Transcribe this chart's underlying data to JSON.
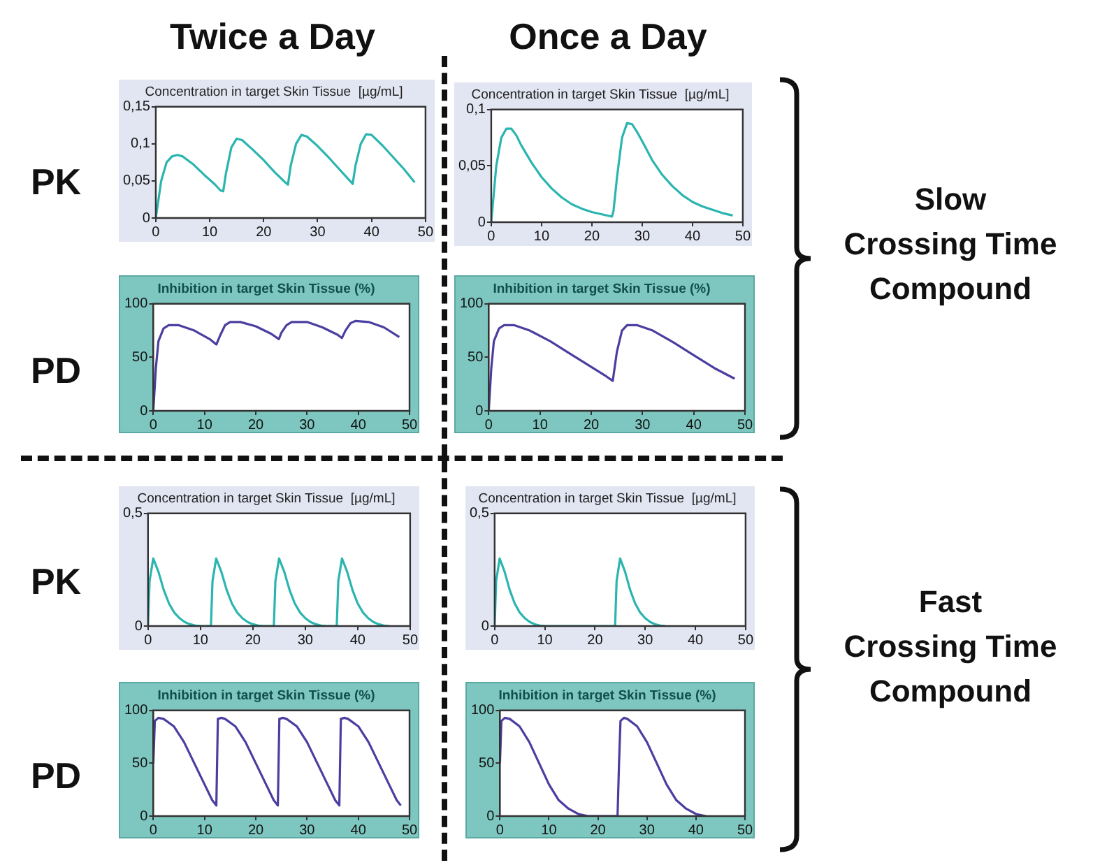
{
  "chart_data": [
    {
      "type": "other",
      "annotations": [
        "Twice a Day",
        "Once a Day",
        "PK",
        "PD",
        "PK",
        "PD",
        "Slow\nCrossing Time\nCompound",
        "Fast\nCrossing Time\nCompound"
      ]
    },
    {
      "type": "line",
      "title": "Concentration in target Skin Tissue  [µg/mL]",
      "color": "#2bb5b0",
      "marker": "none",
      "x": [
        0,
        1,
        2,
        3,
        4,
        5,
        7,
        9,
        11,
        12,
        12.5,
        13,
        14,
        15,
        16,
        18,
        20,
        22,
        24,
        24.5,
        25,
        26,
        27,
        28,
        30,
        32,
        34,
        36,
        36.5,
        37,
        38,
        39,
        40,
        42,
        44,
        46,
        48
      ],
      "values": [
        0,
        0.05,
        0.075,
        0.083,
        0.085,
        0.083,
        0.072,
        0.058,
        0.045,
        0.037,
        0.036,
        0.06,
        0.095,
        0.107,
        0.105,
        0.092,
        0.078,
        0.062,
        0.048,
        0.045,
        0.07,
        0.1,
        0.112,
        0.11,
        0.097,
        0.082,
        0.066,
        0.05,
        0.046,
        0.07,
        0.1,
        0.113,
        0.112,
        0.098,
        0.082,
        0.066,
        0.048
      ],
      "xlim": [
        0,
        50
      ],
      "xticks": [
        0,
        10,
        20,
        30,
        40,
        50
      ],
      "ylim": [
        0,
        0.15
      ],
      "yticks": [
        0,
        {
          "value": 0.05,
          "label": "0,05"
        },
        {
          "value": 0.1,
          "label": "0,1"
        },
        {
          "value": 0.15,
          "label": "0,15"
        }
      ]
    },
    {
      "type": "line",
      "title": "Concentration in target Skin Tissue  [µg/mL]",
      "color": "#2bb5b0",
      "marker": "none",
      "x": [
        0,
        1,
        2,
        3,
        4,
        5,
        6,
        8,
        10,
        12,
        14,
        16,
        18,
        20,
        22,
        24,
        24.3,
        25,
        26,
        27,
        28,
        29,
        30,
        32,
        34,
        36,
        38,
        40,
        42,
        44,
        46,
        48
      ],
      "values": [
        0,
        0.05,
        0.075,
        0.083,
        0.083,
        0.077,
        0.068,
        0.053,
        0.04,
        0.03,
        0.022,
        0.016,
        0.012,
        0.009,
        0.007,
        0.005,
        0.01,
        0.04,
        0.075,
        0.088,
        0.087,
        0.08,
        0.072,
        0.055,
        0.042,
        0.032,
        0.024,
        0.018,
        0.014,
        0.011,
        0.008,
        0.006
      ],
      "xlim": [
        0,
        50
      ],
      "xticks": [
        0,
        10,
        20,
        30,
        40,
        50
      ],
      "ylim": [
        0,
        0.1
      ],
      "yticks": [
        0,
        {
          "value": 0.05,
          "label": "0,05"
        },
        {
          "value": 0.1,
          "label": "0,1"
        }
      ]
    },
    {
      "type": "line",
      "title": "Inhibition in target Skin Tissue (%)",
      "color": "#4a3fa0",
      "marker": "none",
      "x": [
        0,
        0.5,
        1,
        2,
        3,
        5,
        8,
        11,
        12.3,
        13,
        14,
        15,
        17,
        20,
        23,
        24.5,
        25,
        26,
        27,
        30,
        33,
        36,
        36.8,
        37.5,
        38.5,
        39.5,
        42,
        45,
        48
      ],
      "values": [
        0,
        40,
        65,
        77,
        80,
        80,
        75,
        67,
        62,
        70,
        80,
        83,
        83,
        79,
        72,
        67,
        73,
        80,
        83,
        83,
        78,
        71,
        68,
        75,
        82,
        84,
        83,
        78,
        69
      ],
      "xlim": [
        0,
        50
      ],
      "xticks": [
        0,
        10,
        20,
        30,
        40,
        50
      ],
      "ylim": [
        0,
        100
      ],
      "yticks": [
        0,
        50,
        100
      ]
    },
    {
      "type": "line",
      "title": "Inhibition in target Skin Tissue (%)",
      "color": "#4a3fa0",
      "marker": "none",
      "x": [
        0,
        0.5,
        1,
        2,
        3,
        5,
        8,
        12,
        16,
        20,
        23,
        24.2,
        25,
        26,
        27,
        29,
        32,
        36,
        40,
        44,
        48
      ],
      "values": [
        0,
        40,
        65,
        77,
        80,
        80,
        75,
        65,
        53,
        41,
        32,
        28,
        55,
        75,
        80,
        80,
        75,
        64,
        52,
        40,
        30
      ],
      "xlim": [
        0,
        50
      ],
      "xticks": [
        0,
        10,
        20,
        30,
        40,
        50
      ],
      "ylim": [
        0,
        100
      ],
      "yticks": [
        0,
        50,
        100
      ]
    },
    {
      "type": "line",
      "title": "Concentration in target Skin Tissue  [µg/mL]",
      "color": "#2bb5b0",
      "marker": "none",
      "x": [
        0,
        0.3,
        1,
        2,
        3,
        4,
        5,
        6,
        7,
        8,
        9,
        10,
        12,
        12.3,
        13,
        14,
        15,
        16,
        17,
        18,
        19,
        20,
        21,
        22,
        24,
        24.3,
        25,
        26,
        27,
        28,
        29,
        30,
        31,
        32,
        33,
        34,
        36,
        36.3,
        37,
        38,
        39,
        40,
        41,
        42,
        43,
        44,
        45,
        46
      ],
      "values": [
        0,
        0.2,
        0.3,
        0.24,
        0.16,
        0.1,
        0.06,
        0.035,
        0.018,
        0.008,
        0.002,
        0,
        0,
        0.2,
        0.3,
        0.24,
        0.16,
        0.1,
        0.06,
        0.035,
        0.018,
        0.008,
        0.002,
        0,
        0,
        0.2,
        0.3,
        0.24,
        0.16,
        0.1,
        0.06,
        0.035,
        0.018,
        0.008,
        0.002,
        0,
        0,
        0.2,
        0.3,
        0.24,
        0.16,
        0.1,
        0.06,
        0.035,
        0.018,
        0.008,
        0.002,
        0
      ],
      "xlim": [
        0,
        50
      ],
      "xticks": [
        0,
        10,
        20,
        30,
        40,
        50
      ],
      "ylim": [
        0,
        0.5
      ],
      "yticks": [
        0,
        {
          "value": 0.5,
          "label": "0,5"
        }
      ]
    },
    {
      "type": "line",
      "title": "Concentration in target Skin Tissue  [µg/mL]",
      "color": "#2bb5b0",
      "marker": "none",
      "x": [
        0,
        0.3,
        1,
        2,
        3,
        4,
        5,
        6,
        7,
        8,
        9,
        10,
        24,
        24.3,
        25,
        26,
        27,
        28,
        29,
        30,
        31,
        32,
        33,
        34
      ],
      "values": [
        0,
        0.2,
        0.3,
        0.24,
        0.16,
        0.1,
        0.06,
        0.035,
        0.018,
        0.008,
        0.002,
        0,
        0,
        0.2,
        0.3,
        0.24,
        0.16,
        0.1,
        0.06,
        0.035,
        0.018,
        0.008,
        0.002,
        0
      ],
      "xlim": [
        0,
        50
      ],
      "xticks": [
        0,
        10,
        20,
        30,
        40,
        50
      ],
      "ylim": [
        0,
        0.5
      ],
      "yticks": [
        0,
        {
          "value": 0.5,
          "label": "0,5"
        }
      ]
    },
    {
      "type": "line",
      "title": "Inhibition in target Skin Tissue (%)",
      "color": "#4a3fa0",
      "marker": "none",
      "x": [
        0,
        0.3,
        1,
        2,
        4,
        6,
        8,
        10,
        11.5,
        12.3,
        12.6,
        13.3,
        14,
        16,
        18,
        20,
        22,
        23.5,
        24.3,
        24.6,
        25.3,
        26,
        28,
        30,
        32,
        34,
        35.5,
        36.3,
        36.6,
        37.3,
        38,
        40,
        42,
        44,
        46,
        47.5,
        48.3
      ],
      "values": [
        50,
        90,
        93,
        92,
        85,
        70,
        50,
        30,
        15,
        10,
        92,
        93,
        92,
        85,
        70,
        50,
        30,
        15,
        10,
        92,
        93,
        92,
        85,
        70,
        50,
        30,
        15,
        10,
        92,
        93,
        92,
        85,
        70,
        50,
        30,
        15,
        10
      ],
      "xlim": [
        0,
        50
      ],
      "xticks": [
        0,
        10,
        20,
        30,
        40,
        50
      ],
      "ylim": [
        0,
        100
      ],
      "yticks": [
        0,
        50,
        100
      ]
    },
    {
      "type": "line",
      "title": "Inhibition in target Skin Tissue (%)",
      "color": "#4a3fa0",
      "marker": "none",
      "x": [
        0,
        0.3,
        1,
        2,
        4,
        6,
        8,
        10,
        12,
        14,
        16,
        18,
        24,
        24.3,
        24.6,
        25.3,
        26,
        28,
        30,
        32,
        34,
        36,
        38,
        40,
        42
      ],
      "values": [
        50,
        90,
        93,
        92,
        85,
        70,
        50,
        30,
        15,
        7,
        2,
        0,
        0,
        50,
        90,
        93,
        92,
        85,
        70,
        50,
        30,
        15,
        7,
        2,
        0
      ],
      "xlim": [
        0,
        50
      ],
      "xticks": [
        0,
        10,
        20,
        30,
        40,
        50
      ],
      "ylim": [
        0,
        100
      ],
      "yticks": [
        0,
        50,
        100
      ]
    }
  ]
}
